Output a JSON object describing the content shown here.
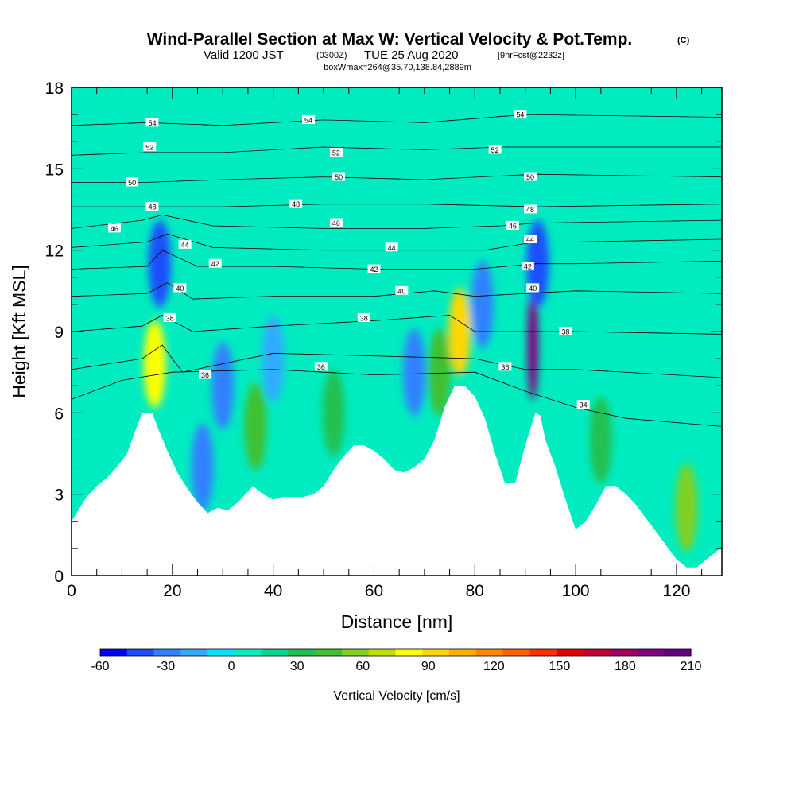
{
  "title": {
    "main": "Wind-Parallel Section at Max W: Vertical Velocity & Pot.Temp.",
    "copyright": "(C)",
    "valid_prefix": "Valid 1200 JST",
    "valid_utc": "(0300Z)",
    "valid_date": "TUE 25 Aug 2020",
    "forecast": "[9hrFcst@2232z]",
    "box": "boxWmax=264@35.70,138.84,2889m"
  },
  "chart_data": {
    "type": "heatmap",
    "xlabel": "Distance [nm]",
    "ylabel": "Height [Kft MSL]",
    "xlim": [
      0,
      129
    ],
    "ylim": [
      0,
      18
    ],
    "x_ticks": [
      0,
      20,
      40,
      60,
      80,
      100,
      120
    ],
    "y_ticks": [
      0,
      3,
      6,
      9,
      12,
      15,
      18
    ],
    "colorbar": {
      "title": "Vertical Velocity [cm/s]",
      "min": -60,
      "max": 210,
      "step": 15,
      "tick_values": [
        -60,
        -30,
        0,
        30,
        60,
        90,
        120,
        150,
        180,
        210
      ],
      "tick_labels": [
        "-60",
        "-30",
        "0",
        "30",
        "60",
        "90",
        "120",
        "150",
        "180",
        "210"
      ],
      "colors": [
        "#0000ff",
        "#1a4dff",
        "#3380ff",
        "#33aaff",
        "#00e5ff",
        "#00f0c0",
        "#00d890",
        "#20c050",
        "#40c030",
        "#80d020",
        "#c0e000",
        "#ffff00",
        "#ffd800",
        "#ffb000",
        "#ff8800",
        "#ff6000",
        "#ff3000",
        "#e00000",
        "#c00030",
        "#a00060",
        "#800080",
        "#600080"
      ]
    },
    "terrain": [
      [
        0,
        2
      ],
      [
        1,
        2.3
      ],
      [
        2,
        2.6
      ],
      [
        3,
        2.9
      ],
      [
        5,
        3.3
      ],
      [
        7,
        3.6
      ],
      [
        9,
        4
      ],
      [
        11,
        4.5
      ],
      [
        13,
        5.5
      ],
      [
        14,
        6
      ],
      [
        16,
        6
      ],
      [
        17,
        5.5
      ],
      [
        19,
        4.6
      ],
      [
        21,
        3.8
      ],
      [
        23,
        3.2
      ],
      [
        25,
        2.7
      ],
      [
        27,
        2.3
      ],
      [
        29,
        2.5
      ],
      [
        31,
        2.4
      ],
      [
        33,
        2.7
      ],
      [
        35,
        3.1
      ],
      [
        36,
        3.3
      ],
      [
        38,
        3
      ],
      [
        40,
        2.8
      ],
      [
        42,
        2.9
      ],
      [
        44,
        2.9
      ],
      [
        46,
        2.9
      ],
      [
        48,
        3
      ],
      [
        50,
        3.3
      ],
      [
        52,
        3.9
      ],
      [
        54,
        4.4
      ],
      [
        56,
        4.8
      ],
      [
        58,
        4.8
      ],
      [
        60,
        4.6
      ],
      [
        62,
        4.3
      ],
      [
        64,
        3.9
      ],
      [
        66,
        3.8
      ],
      [
        68,
        4
      ],
      [
        70,
        4.3
      ],
      [
        72,
        5
      ],
      [
        74,
        6.2
      ],
      [
        76,
        7
      ],
      [
        78,
        7
      ],
      [
        80,
        6.6
      ],
      [
        82,
        5.8
      ],
      [
        84,
        4.5
      ],
      [
        86,
        3.4
      ],
      [
        88,
        3.4
      ],
      [
        90,
        4.8
      ],
      [
        92,
        6
      ],
      [
        93,
        5.9
      ],
      [
        94,
        5
      ],
      [
        96,
        4
      ],
      [
        98,
        2.8
      ],
      [
        100,
        1.7
      ],
      [
        102,
        2
      ],
      [
        104,
        2.6
      ],
      [
        106,
        3.3
      ],
      [
        108,
        3.3
      ],
      [
        110,
        3
      ],
      [
        112,
        2.6
      ],
      [
        114,
        2.1
      ],
      [
        116,
        1.6
      ],
      [
        118,
        1.1
      ],
      [
        120,
        0.6
      ],
      [
        122,
        0.3
      ],
      [
        124,
        0.3
      ],
      [
        126,
        0.6
      ],
      [
        128,
        0.9
      ],
      [
        129,
        1
      ]
    ],
    "velocity_features": [
      {
        "x": 16.5,
        "y": 7.8,
        "value": 75
      },
      {
        "x": 17.5,
        "y": 11.5,
        "value": -40
      },
      {
        "x": 30,
        "y": 7,
        "value": -35
      },
      {
        "x": 26,
        "y": 4,
        "value": -30
      },
      {
        "x": 36.5,
        "y": 5.5,
        "value": 40
      },
      {
        "x": 40,
        "y": 8,
        "value": -20
      },
      {
        "x": 52,
        "y": 6,
        "value": 30
      },
      {
        "x": 68,
        "y": 7.5,
        "value": -25
      },
      {
        "x": 73,
        "y": 7.5,
        "value": 40
      },
      {
        "x": 77,
        "y": 9,
        "value": 90
      },
      {
        "x": 81.5,
        "y": 10,
        "value": -35
      },
      {
        "x": 91.5,
        "y": 8.5,
        "value": 190
      },
      {
        "x": 92.5,
        "y": 11.5,
        "value": -40
      },
      {
        "x": 105,
        "y": 5,
        "value": 30
      },
      {
        "x": 122,
        "y": 2.5,
        "value": 60
      }
    ],
    "theta_isolines": [
      {
        "value": 34,
        "label": "34",
        "points": [
          [
            0,
            6.5
          ],
          [
            10,
            7.2
          ],
          [
            20,
            7.5
          ],
          [
            40,
            7.6
          ],
          [
            60,
            7.4
          ],
          [
            80,
            7.5
          ],
          [
            90,
            6.8
          ],
          [
            100,
            6.2
          ],
          [
            110,
            5.8
          ],
          [
            129,
            5.5
          ]
        ]
      },
      {
        "value": 36,
        "label": "36",
        "points": [
          [
            0,
            7.6
          ],
          [
            14,
            8
          ],
          [
            18,
            8.5
          ],
          [
            22,
            7.5
          ],
          [
            40,
            8.2
          ],
          [
            60,
            8.1
          ],
          [
            80,
            8
          ],
          [
            90,
            7.6
          ],
          [
            100,
            7.6
          ],
          [
            129,
            7.3
          ]
        ]
      },
      {
        "value": 38,
        "label": "38",
        "points": [
          [
            0,
            9
          ],
          [
            14,
            9.2
          ],
          [
            18,
            9.6
          ],
          [
            24,
            9
          ],
          [
            40,
            9.2
          ],
          [
            60,
            9.4
          ],
          [
            75,
            9.6
          ],
          [
            80,
            9
          ],
          [
            90,
            9
          ],
          [
            100,
            9
          ],
          [
            129,
            8.9
          ]
        ]
      },
      {
        "value": 40,
        "label": "40",
        "points": [
          [
            0,
            10.3
          ],
          [
            15,
            10.4
          ],
          [
            19,
            10.8
          ],
          [
            24,
            10.2
          ],
          [
            40,
            10.3
          ],
          [
            60,
            10.3
          ],
          [
            72,
            10.5
          ],
          [
            80,
            10.3
          ],
          [
            90,
            10.4
          ],
          [
            100,
            10.5
          ],
          [
            129,
            10.4
          ]
        ]
      },
      {
        "value": 42,
        "label": "42",
        "points": [
          [
            0,
            11.3
          ],
          [
            15,
            11.4
          ],
          [
            18,
            12
          ],
          [
            25,
            11.4
          ],
          [
            40,
            11.4
          ],
          [
            60,
            11.3
          ],
          [
            80,
            11.3
          ],
          [
            92,
            11.5
          ],
          [
            100,
            11.5
          ],
          [
            129,
            11.6
          ]
        ]
      },
      {
        "value": 44,
        "label": "44",
        "points": [
          [
            0,
            12.1
          ],
          [
            15,
            12.3
          ],
          [
            19,
            12.6
          ],
          [
            28,
            12.1
          ],
          [
            50,
            12
          ],
          [
            70,
            12
          ],
          [
            82,
            12
          ],
          [
            92,
            12.3
          ],
          [
            100,
            12.3
          ],
          [
            129,
            12.4
          ]
        ]
      },
      {
        "value": 46,
        "label": "46",
        "points": [
          [
            0,
            12.8
          ],
          [
            14,
            13.1
          ],
          [
            18,
            13.3
          ],
          [
            28,
            12.9
          ],
          [
            50,
            12.8
          ],
          [
            70,
            12.8
          ],
          [
            85,
            12.9
          ],
          [
            92,
            13
          ],
          [
            129,
            13.1
          ]
        ]
      },
      {
        "value": 48,
        "label": "48",
        "points": [
          [
            0,
            13.6
          ],
          [
            15,
            13.6
          ],
          [
            30,
            13.6
          ],
          [
            50,
            13.7
          ],
          [
            70,
            13.7
          ],
          [
            92,
            13.6
          ],
          [
            129,
            13.7
          ]
        ]
      },
      {
        "value": 50,
        "label": "50",
        "points": [
          [
            0,
            14.5
          ],
          [
            15,
            14.5
          ],
          [
            30,
            14.6
          ],
          [
            50,
            14.7
          ],
          [
            70,
            14.6
          ],
          [
            92,
            14.8
          ],
          [
            129,
            14.7
          ]
        ]
      },
      {
        "value": 52,
        "label": "52",
        "points": [
          [
            0,
            15.5
          ],
          [
            15,
            15.6
          ],
          [
            30,
            15.6
          ],
          [
            50,
            15.8
          ],
          [
            70,
            15.7
          ],
          [
            85,
            15.8
          ],
          [
            129,
            15.8
          ]
        ]
      },
      {
        "value": 54,
        "label": "54",
        "points": [
          [
            0,
            16.6
          ],
          [
            15,
            16.7
          ],
          [
            30,
            16.6
          ],
          [
            50,
            16.8
          ],
          [
            70,
            16.7
          ],
          [
            90,
            17
          ],
          [
            129,
            16.9
          ]
        ]
      }
    ],
    "isoline_labels": [
      {
        "text": "54",
        "x": 16,
        "y": 16.7
      },
      {
        "text": "54",
        "x": 47,
        "y": 16.8
      },
      {
        "text": "54",
        "x": 89,
        "y": 17
      },
      {
        "text": "52",
        "x": 15.5,
        "y": 15.8
      },
      {
        "text": "52",
        "x": 52.5,
        "y": 15.6
      },
      {
        "text": "52",
        "x": 84,
        "y": 15.7
      },
      {
        "text": "50",
        "x": 12,
        "y": 14.5
      },
      {
        "text": "50",
        "x": 53,
        "y": 14.7
      },
      {
        "text": "50",
        "x": 91,
        "y": 14.7
      },
      {
        "text": "48",
        "x": 16,
        "y": 13.6
      },
      {
        "text": "48",
        "x": 44.5,
        "y": 13.7
      },
      {
        "text": "48",
        "x": 91,
        "y": 13.5
      },
      {
        "text": "46",
        "x": 8.5,
        "y": 12.8
      },
      {
        "text": "46",
        "x": 52.5,
        "y": 13
      },
      {
        "text": "46",
        "x": 87.5,
        "y": 12.9
      },
      {
        "text": "44",
        "x": 22.5,
        "y": 12.2
      },
      {
        "text": "44",
        "x": 63.5,
        "y": 12.1
      },
      {
        "text": "44",
        "x": 91,
        "y": 12.4
      },
      {
        "text": "42",
        "x": 28.5,
        "y": 11.5
      },
      {
        "text": "42",
        "x": 60,
        "y": 11.3
      },
      {
        "text": "42",
        "x": 90.5,
        "y": 11.4
      },
      {
        "text": "40",
        "x": 21.5,
        "y": 10.6
      },
      {
        "text": "40",
        "x": 65.5,
        "y": 10.5
      },
      {
        "text": "40",
        "x": 91.5,
        "y": 10.6
      },
      {
        "text": "38",
        "x": 19.5,
        "y": 9.5
      },
      {
        "text": "38",
        "x": 58,
        "y": 9.5
      },
      {
        "text": "38",
        "x": 98,
        "y": 9
      },
      {
        "text": "36",
        "x": 26.5,
        "y": 7.4
      },
      {
        "text": "36",
        "x": 49.5,
        "y": 7.7
      },
      {
        "text": "36",
        "x": 86,
        "y": 7.7
      },
      {
        "text": "34",
        "x": 101.5,
        "y": 6.3
      }
    ]
  }
}
